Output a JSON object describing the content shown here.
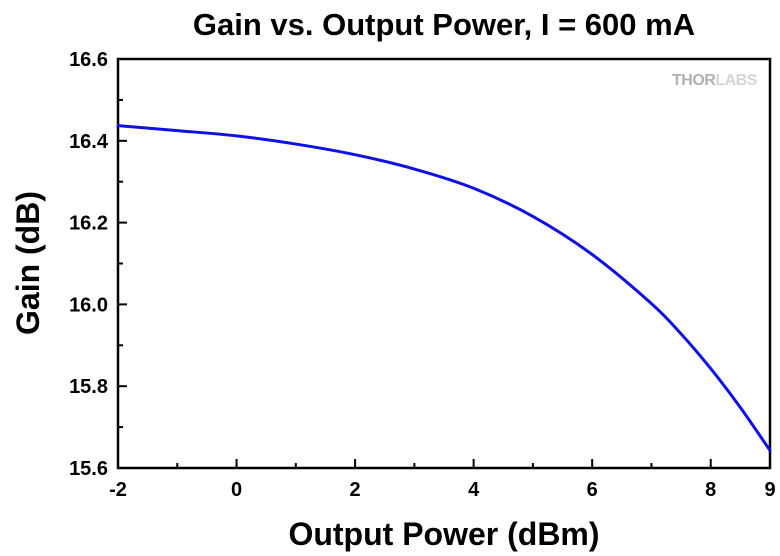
{
  "chart_data": {
    "type": "line",
    "title": "Gain vs. Output Power, I = 600 mA",
    "xlabel": "Output Power (dBm)",
    "ylabel": "Gain (dB)",
    "xlim": [
      -2,
      9
    ],
    "ylim": [
      15.6,
      16.6
    ],
    "xticks": [
      -2,
      0,
      2,
      4,
      6,
      8,
      9
    ],
    "xtick_labels": [
      "-2",
      "0",
      "2",
      "4",
      "6",
      "8",
      "9"
    ],
    "yticks": [
      15.6,
      15.8,
      16.0,
      16.2,
      16.4,
      16.6
    ],
    "ytick_labels": [
      "15.6",
      "15.8",
      "16.0",
      "16.2",
      "16.4",
      "16.6"
    ],
    "grid": false,
    "line_color": "#1010e6",
    "series": [
      {
        "x": [
          -2,
          -1,
          0,
          1,
          2,
          3,
          4,
          5,
          6,
          7,
          7.5,
          8,
          8.5,
          9
        ],
        "y": [
          16.437,
          16.425,
          16.412,
          16.392,
          16.366,
          16.331,
          16.284,
          16.215,
          16.122,
          16.002,
          15.928,
          15.843,
          15.748,
          15.643
        ]
      }
    ]
  },
  "logo": {
    "part1": "THOR",
    "part2": "LABS"
  }
}
